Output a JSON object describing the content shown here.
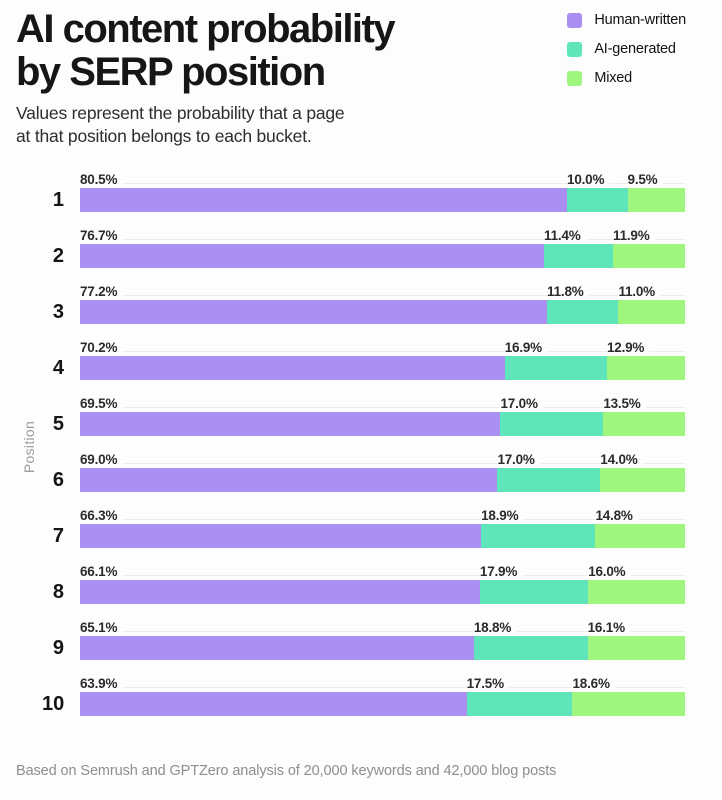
{
  "header": {
    "title_line1": "AI content probability",
    "title_line2": "by SERP position",
    "subtitle_line1": "Values represent the probability that a page",
    "subtitle_line2": "at that position belongs to each bucket."
  },
  "legend": {
    "items": [
      {
        "label": "Human-written",
        "color": "#ab8ef2"
      },
      {
        "label": "AI-generated",
        "color": "#5ee6ba"
      },
      {
        "label": "Mixed",
        "color": "#9ff57d"
      }
    ]
  },
  "chart_data": {
    "type": "bar",
    "orientation": "horizontal",
    "stacked": true,
    "title": "AI content probability by SERP position",
    "xlabel": "",
    "ylabel": "Position",
    "xlim": [
      0,
      100
    ],
    "grid": false,
    "legend_position": "top-right",
    "value_label_suffix": "%",
    "categories": [
      "1",
      "2",
      "3",
      "4",
      "5",
      "6",
      "7",
      "8",
      "9",
      "10"
    ],
    "series": [
      {
        "name": "Human-written",
        "key": "human",
        "color": "#ab8ef2",
        "values": [
          80.5,
          76.7,
          77.2,
          70.2,
          69.5,
          69.0,
          66.3,
          66.1,
          65.1,
          63.9
        ]
      },
      {
        "name": "AI-generated",
        "key": "ai",
        "color": "#5ee6ba",
        "values": [
          10.0,
          11.4,
          11.8,
          16.9,
          17.0,
          17.0,
          18.9,
          17.9,
          18.8,
          17.5
        ]
      },
      {
        "name": "Mixed",
        "key": "mixed",
        "color": "#9ff57d",
        "values": [
          9.5,
          11.9,
          11.0,
          12.9,
          13.5,
          14.0,
          14.8,
          16.0,
          16.1,
          18.6
        ]
      }
    ]
  },
  "footer": {
    "source_note": "Based on Semrush and GPTZero analysis of 20,000 keywords and 42,000 blog posts"
  }
}
